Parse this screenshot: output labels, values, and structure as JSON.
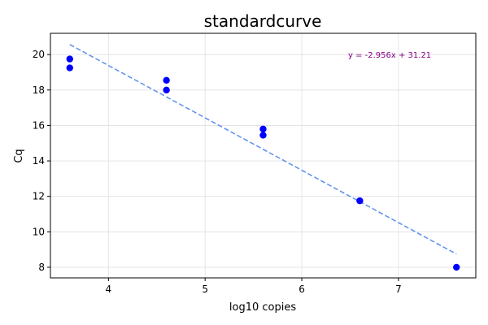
{
  "chart_data": {
    "type": "scatter",
    "title": "standardcurve",
    "xlabel": "log10 copies",
    "ylabel": "Cq",
    "xlim": [
      3.4,
      7.8
    ],
    "ylim": [
      7.4,
      21.2
    ],
    "xticks": [
      4,
      5,
      6,
      7
    ],
    "yticks": [
      8,
      10,
      12,
      14,
      16,
      18,
      20
    ],
    "grid": true,
    "points": [
      {
        "x": 3.6,
        "y": 19.75
      },
      {
        "x": 3.6,
        "y": 19.25
      },
      {
        "x": 4.6,
        "y": 18.55
      },
      {
        "x": 4.6,
        "y": 18.0
      },
      {
        "x": 5.6,
        "y": 15.8
      },
      {
        "x": 5.6,
        "y": 15.45
      },
      {
        "x": 6.6,
        "y": 11.75
      },
      {
        "x": 7.6,
        "y": 8.0
      }
    ],
    "fit_line": {
      "slope": -2.956,
      "intercept": 31.21,
      "x_start": 3.6,
      "x_end": 7.6
    },
    "annotation": "y = -2.956x + 31.21",
    "colors": {
      "points": "#0000ff",
      "fit_line": "#6495ed",
      "annotation": "#800080",
      "grid": "#e0e0e0"
    }
  }
}
